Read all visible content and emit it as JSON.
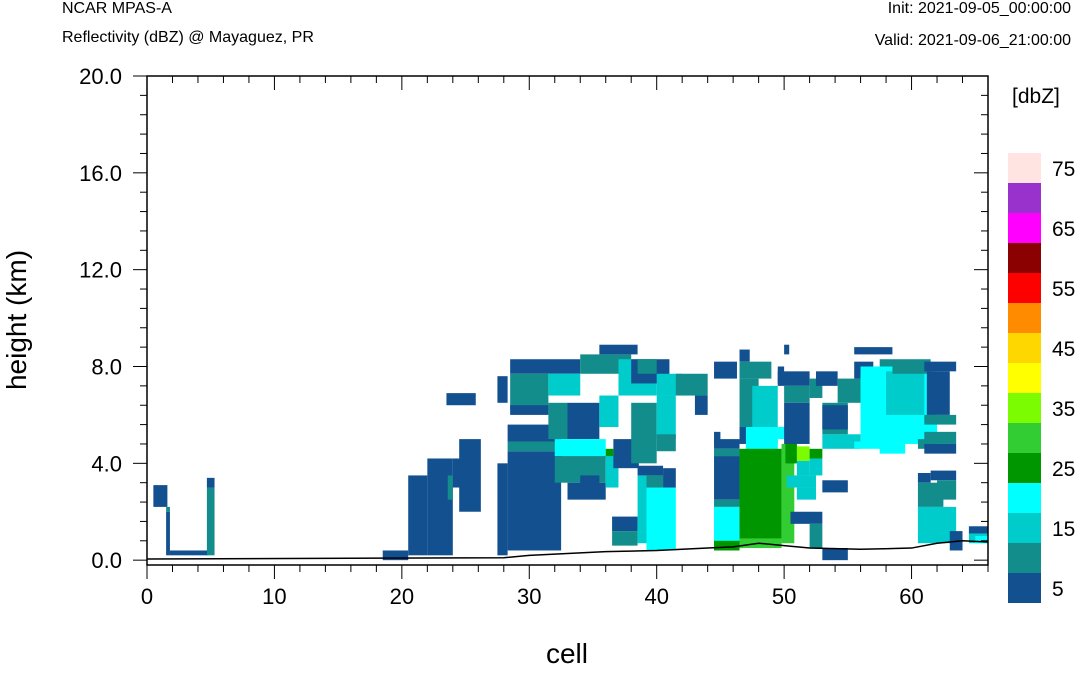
{
  "header": {
    "model": "NCAR MPAS-A",
    "field": "Reflectivity (dBZ) @ Mayaguez, PR",
    "init": "Init: 2021-09-05_00:00:00",
    "valid": "Valid: 2021-09-06_21:00:00"
  },
  "chart_data": {
    "type": "heatmap",
    "xlabel": "cell",
    "ylabel": "height (km)",
    "xlim": [
      0,
      66
    ],
    "ylim": [
      -0.2,
      20.0
    ],
    "xticks": [
      "0",
      "10",
      "20",
      "30",
      "40",
      "50",
      "60"
    ],
    "yticks": [
      "0.0",
      "4.0",
      "8.0",
      "12.0",
      "16.0",
      "20.0"
    ],
    "colorbar": {
      "unit": "[dbZ]",
      "levels": [
        5,
        10,
        15,
        20,
        25,
        30,
        35,
        40,
        45,
        50,
        55,
        60,
        65,
        70,
        75
      ],
      "colors": [
        "#13508f",
        "#138c8c",
        "#00cccc",
        "#00ffff",
        "#009600",
        "#32cd32",
        "#7cfc00",
        "#ffff00",
        "#ffd700",
        "#ff8c00",
        "#ff0000",
        "#8b0000",
        "#ff00ff",
        "#9932cc",
        "#ffe4e1"
      ],
      "labels": [
        "5",
        "15",
        "25",
        "35",
        "45",
        "55",
        "65",
        "75"
      ]
    },
    "terrain_km": [
      [
        0,
        0.05
      ],
      [
        28,
        0.1
      ],
      [
        30,
        0.2
      ],
      [
        36,
        0.35
      ],
      [
        40,
        0.4
      ],
      [
        44,
        0.5
      ],
      [
        46,
        0.55
      ],
      [
        48,
        0.7
      ],
      [
        50,
        0.6
      ],
      [
        52,
        0.5
      ],
      [
        56,
        0.45
      ],
      [
        60,
        0.5
      ],
      [
        62,
        0.7
      ],
      [
        64,
        0.8
      ],
      [
        66,
        0.75
      ]
    ],
    "cells": [
      [
        0.5,
        1.6,
        2.2,
        3.1,
        0
      ],
      [
        1.5,
        1.8,
        2.0,
        2.2,
        1
      ],
      [
        1.5,
        1.8,
        0.2,
        2.0,
        0
      ],
      [
        1.8,
        4.8,
        0.2,
        0.4,
        0
      ],
      [
        4.7,
        5.3,
        3.0,
        3.4,
        0
      ],
      [
        4.7,
        5.3,
        0.2,
        3.0,
        1
      ],
      [
        18.5,
        20.5,
        0,
        0.4,
        0
      ],
      [
        20.5,
        22,
        0.2,
        3.5,
        0
      ],
      [
        22,
        24,
        0.2,
        4.2,
        0
      ],
      [
        23.6,
        24,
        2.5,
        3.5,
        1
      ],
      [
        24,
        25,
        3.0,
        4.2,
        0
      ],
      [
        24.5,
        26.2,
        2.0,
        5.0,
        0
      ],
      [
        23.5,
        25.8,
        6.4,
        6.9,
        0
      ],
      [
        27.5,
        28.3,
        6.5,
        7.6,
        0
      ],
      [
        27.5,
        28.3,
        0.2,
        4.0,
        0
      ],
      [
        28.3,
        32.5,
        0.4,
        4.5,
        0
      ],
      [
        28.3,
        32.5,
        4.5,
        4.9,
        1
      ],
      [
        28.3,
        32.5,
        4.9,
        5.6,
        0
      ],
      [
        28.5,
        34,
        7.7,
        8.3,
        0
      ],
      [
        28.5,
        31.5,
        6.2,
        7.7,
        1
      ],
      [
        31.5,
        34,
        6.8,
        7.7,
        2
      ],
      [
        28.5,
        31.5,
        6.0,
        6.4,
        0
      ],
      [
        31.5,
        33,
        5.0,
        6.5,
        1
      ],
      [
        33,
        35.5,
        5.0,
        6.5,
        0
      ],
      [
        35.5,
        37,
        5.5,
        6.8,
        2
      ],
      [
        32,
        36,
        4.3,
        5.0,
        3
      ],
      [
        32,
        36,
        3.2,
        4.3,
        1
      ],
      [
        33,
        36,
        2.5,
        3.2,
        0
      ],
      [
        34,
        35.5,
        3.0,
        3.5,
        0
      ],
      [
        36,
        36.6,
        4.2,
        4.6,
        4
      ],
      [
        36,
        37,
        3.0,
        4.3,
        2
      ],
      [
        36.6,
        38.6,
        3.8,
        5.0,
        0
      ],
      [
        34,
        38,
        7.7,
        8.5,
        1
      ],
      [
        35.5,
        38.5,
        8.5,
        8.9,
        0
      ],
      [
        37,
        40,
        6.8,
        8.3,
        2
      ],
      [
        38,
        40,
        4.0,
        6.5,
        1
      ],
      [
        38,
        41,
        7.3,
        8.3,
        0
      ],
      [
        40,
        42,
        6.8,
        7.7,
        2
      ],
      [
        40,
        41.5,
        5.0,
        6.8,
        2
      ],
      [
        40,
        41.5,
        4.5,
        5.2,
        1
      ],
      [
        41.5,
        44,
        6.8,
        7.7,
        1
      ],
      [
        38.5,
        40,
        7.7,
        8.3,
        1
      ],
      [
        36.5,
        38.5,
        1.2,
        1.8,
        0
      ],
      [
        36.5,
        38.5,
        0.6,
        1.2,
        1
      ],
      [
        38.5,
        39.2,
        0.7,
        3.5,
        2
      ],
      [
        38.5,
        40.5,
        3.5,
        3.9,
        0
      ],
      [
        39.2,
        40.5,
        2.0,
        3.5,
        1
      ],
      [
        39.2,
        41.5,
        0.4,
        3.0,
        3
      ],
      [
        40.5,
        41.5,
        3.0,
        3.8,
        0
      ],
      [
        43,
        44,
        6.0,
        6.8,
        0
      ],
      [
        44.5,
        46.3,
        7.5,
        8.2,
        0
      ],
      [
        44.5,
        46.5,
        4.6,
        5.0,
        0
      ],
      [
        44.5,
        45,
        4.8,
        5.3,
        0
      ],
      [
        44.5,
        46.5,
        4.3,
        4.6,
        1
      ],
      [
        44.5,
        46.5,
        2.5,
        4.3,
        0
      ],
      [
        44.5,
        46.5,
        2.2,
        2.5,
        1
      ],
      [
        44.5,
        46.5,
        0.4,
        2.2,
        3
      ],
      [
        44.5,
        46.5,
        0.4,
        0.8,
        4
      ],
      [
        46.5,
        47,
        0.5,
        1.0,
        5
      ],
      [
        46.5,
        47.3,
        8.2,
        8.7,
        0
      ],
      [
        46.5,
        49,
        7.5,
        8.2,
        1
      ],
      [
        46.5,
        48,
        5.5,
        7.5,
        1
      ],
      [
        46.5,
        47.5,
        4.8,
        5.5,
        0
      ],
      [
        47.5,
        49.5,
        4.8,
        7.2,
        2
      ],
      [
        47,
        49.5,
        4.2,
        5.5,
        3
      ],
      [
        49.5,
        50.1,
        5.0,
        5.5,
        3
      ],
      [
        49.5,
        50,
        7.3,
        8.0,
        0
      ],
      [
        50,
        50.4,
        8.5,
        8.9,
        0
      ],
      [
        46.5,
        49.8,
        0.8,
        4.6,
        4
      ],
      [
        49.8,
        50.8,
        0.7,
        4.8,
        5
      ],
      [
        50.1,
        51,
        4.0,
        5.4,
        4
      ],
      [
        46.5,
        49.8,
        0.5,
        0.9,
        5
      ],
      [
        49.5,
        52,
        7.2,
        7.8,
        0
      ],
      [
        50,
        52,
        6.5,
        7.2,
        1
      ],
      [
        50,
        52,
        4.8,
        6.5,
        0
      ],
      [
        52,
        53,
        6.7,
        7.5,
        1
      ],
      [
        50.2,
        51,
        4.0,
        4.8,
        4
      ],
      [
        51,
        52,
        4.1,
        4.7,
        6
      ],
      [
        51,
        52,
        3.5,
        4.1,
        2
      ],
      [
        52,
        53,
        4.2,
        4.6,
        4
      ],
      [
        52,
        53,
        3.5,
        4.2,
        2
      ],
      [
        50.2,
        52.5,
        3.0,
        3.5,
        2
      ],
      [
        51,
        52.5,
        2.5,
        3.0,
        2
      ],
      [
        50.5,
        53,
        1.5,
        2.0,
        0
      ],
      [
        52,
        53,
        0.5,
        1.5,
        1
      ],
      [
        53,
        55,
        2.8,
        3.3,
        0
      ],
      [
        53,
        55,
        0,
        0.5,
        0
      ],
      [
        52.5,
        54.2,
        7.2,
        7.8,
        0
      ],
      [
        53,
        56,
        4.6,
        5.2,
        2
      ],
      [
        54.2,
        56,
        6.5,
        7.5,
        1
      ],
      [
        53,
        55,
        5.2,
        6.5,
        1
      ],
      [
        53,
        55,
        5.4,
        6.4,
        0
      ],
      [
        56,
        58,
        7.0,
        7.8,
        2
      ],
      [
        55.5,
        57,
        7.5,
        8.2,
        0
      ],
      [
        55.5,
        58.5,
        8.5,
        8.8,
        0
      ],
      [
        56,
        62,
        4.8,
        8.0,
        3
      ],
      [
        56,
        60,
        5.8,
        7.8,
        3
      ],
      [
        58,
        61,
        6.0,
        7.8,
        2
      ],
      [
        57.5,
        61.5,
        8.0,
        8.3,
        1
      ],
      [
        58.5,
        61.5,
        7.7,
        8.0,
        1
      ],
      [
        55.5,
        58,
        4.6,
        4.9,
        3
      ],
      [
        61,
        63.5,
        7.8,
        8.2,
        0
      ],
      [
        61.2,
        63,
        6.0,
        7.8,
        0
      ],
      [
        61,
        63.5,
        5.6,
        6.0,
        1
      ],
      [
        61,
        63.5,
        4.8,
        5.3,
        1
      ],
      [
        60.5,
        61.5,
        4.6,
        5.0,
        1
      ],
      [
        61,
        63.5,
        4.4,
        4.8,
        0
      ],
      [
        60.5,
        61.5,
        3.2,
        3.6,
        0
      ],
      [
        61.5,
        63.5,
        3.3,
        3.7,
        0
      ],
      [
        60.5,
        62.5,
        2.2,
        3.2,
        1
      ],
      [
        62,
        63.5,
        2.5,
        3.3,
        1
      ],
      [
        60.5,
        63.5,
        0.7,
        2.2,
        2
      ],
      [
        63,
        64,
        0.4,
        1.2,
        0
      ],
      [
        64.5,
        66.3,
        1.1,
        1.4,
        0
      ],
      [
        64.5,
        66.3,
        0.7,
        1.1,
        2
      ],
      [
        65,
        66.3,
        0.7,
        1.0,
        3
      ],
      [
        57.5,
        59.5,
        4.4,
        4.8,
        3
      ]
    ]
  }
}
